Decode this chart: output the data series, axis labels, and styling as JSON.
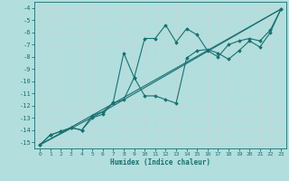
{
  "xlabel": "Humidex (Indice chaleur)",
  "bg_color": "#b2dede",
  "line_color": "#1a7070",
  "grid_color": "#c8e8e8",
  "xlim": [
    -0.5,
    23.5
  ],
  "ylim": [
    -15.5,
    -3.5
  ],
  "yticks": [
    -15,
    -14,
    -13,
    -12,
    -11,
    -10,
    -9,
    -8,
    -7,
    -6,
    -5,
    -4
  ],
  "xticks": [
    0,
    1,
    2,
    3,
    4,
    5,
    6,
    7,
    8,
    9,
    10,
    11,
    12,
    13,
    14,
    15,
    16,
    17,
    18,
    19,
    20,
    21,
    22,
    23
  ],
  "line1_x": [
    0,
    1,
    2,
    3,
    4,
    5,
    6,
    7,
    8,
    9,
    10,
    11,
    12,
    13,
    14,
    15,
    16,
    17,
    18,
    19,
    20,
    21,
    22,
    23
  ],
  "line1_y": [
    -15.2,
    -14.4,
    -14.1,
    -13.8,
    -14.0,
    -13.0,
    -12.7,
    -11.7,
    -7.7,
    -9.7,
    -6.5,
    -6.5,
    -5.4,
    -6.8,
    -5.7,
    -6.2,
    -7.5,
    -8.0,
    -7.0,
    -6.7,
    -6.5,
    -6.7,
    -5.8,
    -4.1
  ],
  "line2_x": [
    0,
    1,
    2,
    3,
    4,
    5,
    6,
    7,
    8,
    9,
    10,
    11,
    12,
    13,
    14,
    15,
    16,
    17,
    18,
    19,
    20,
    21,
    22,
    23
  ],
  "line2_y": [
    -15.2,
    -14.4,
    -14.1,
    -13.8,
    -14.0,
    -12.8,
    -12.5,
    -11.8,
    -11.5,
    -9.7,
    -11.2,
    -11.2,
    -11.5,
    -11.8,
    -8.1,
    -7.5,
    -7.4,
    -7.7,
    -8.2,
    -7.5,
    -6.7,
    -7.2,
    -6.0,
    -4.1
  ],
  "line3_x": [
    0,
    23
  ],
  "line3_y": [
    -15.2,
    -4.1
  ],
  "line4_x": [
    0,
    6,
    23
  ],
  "line4_y": [
    -15.2,
    -12.5,
    -4.1
  ]
}
